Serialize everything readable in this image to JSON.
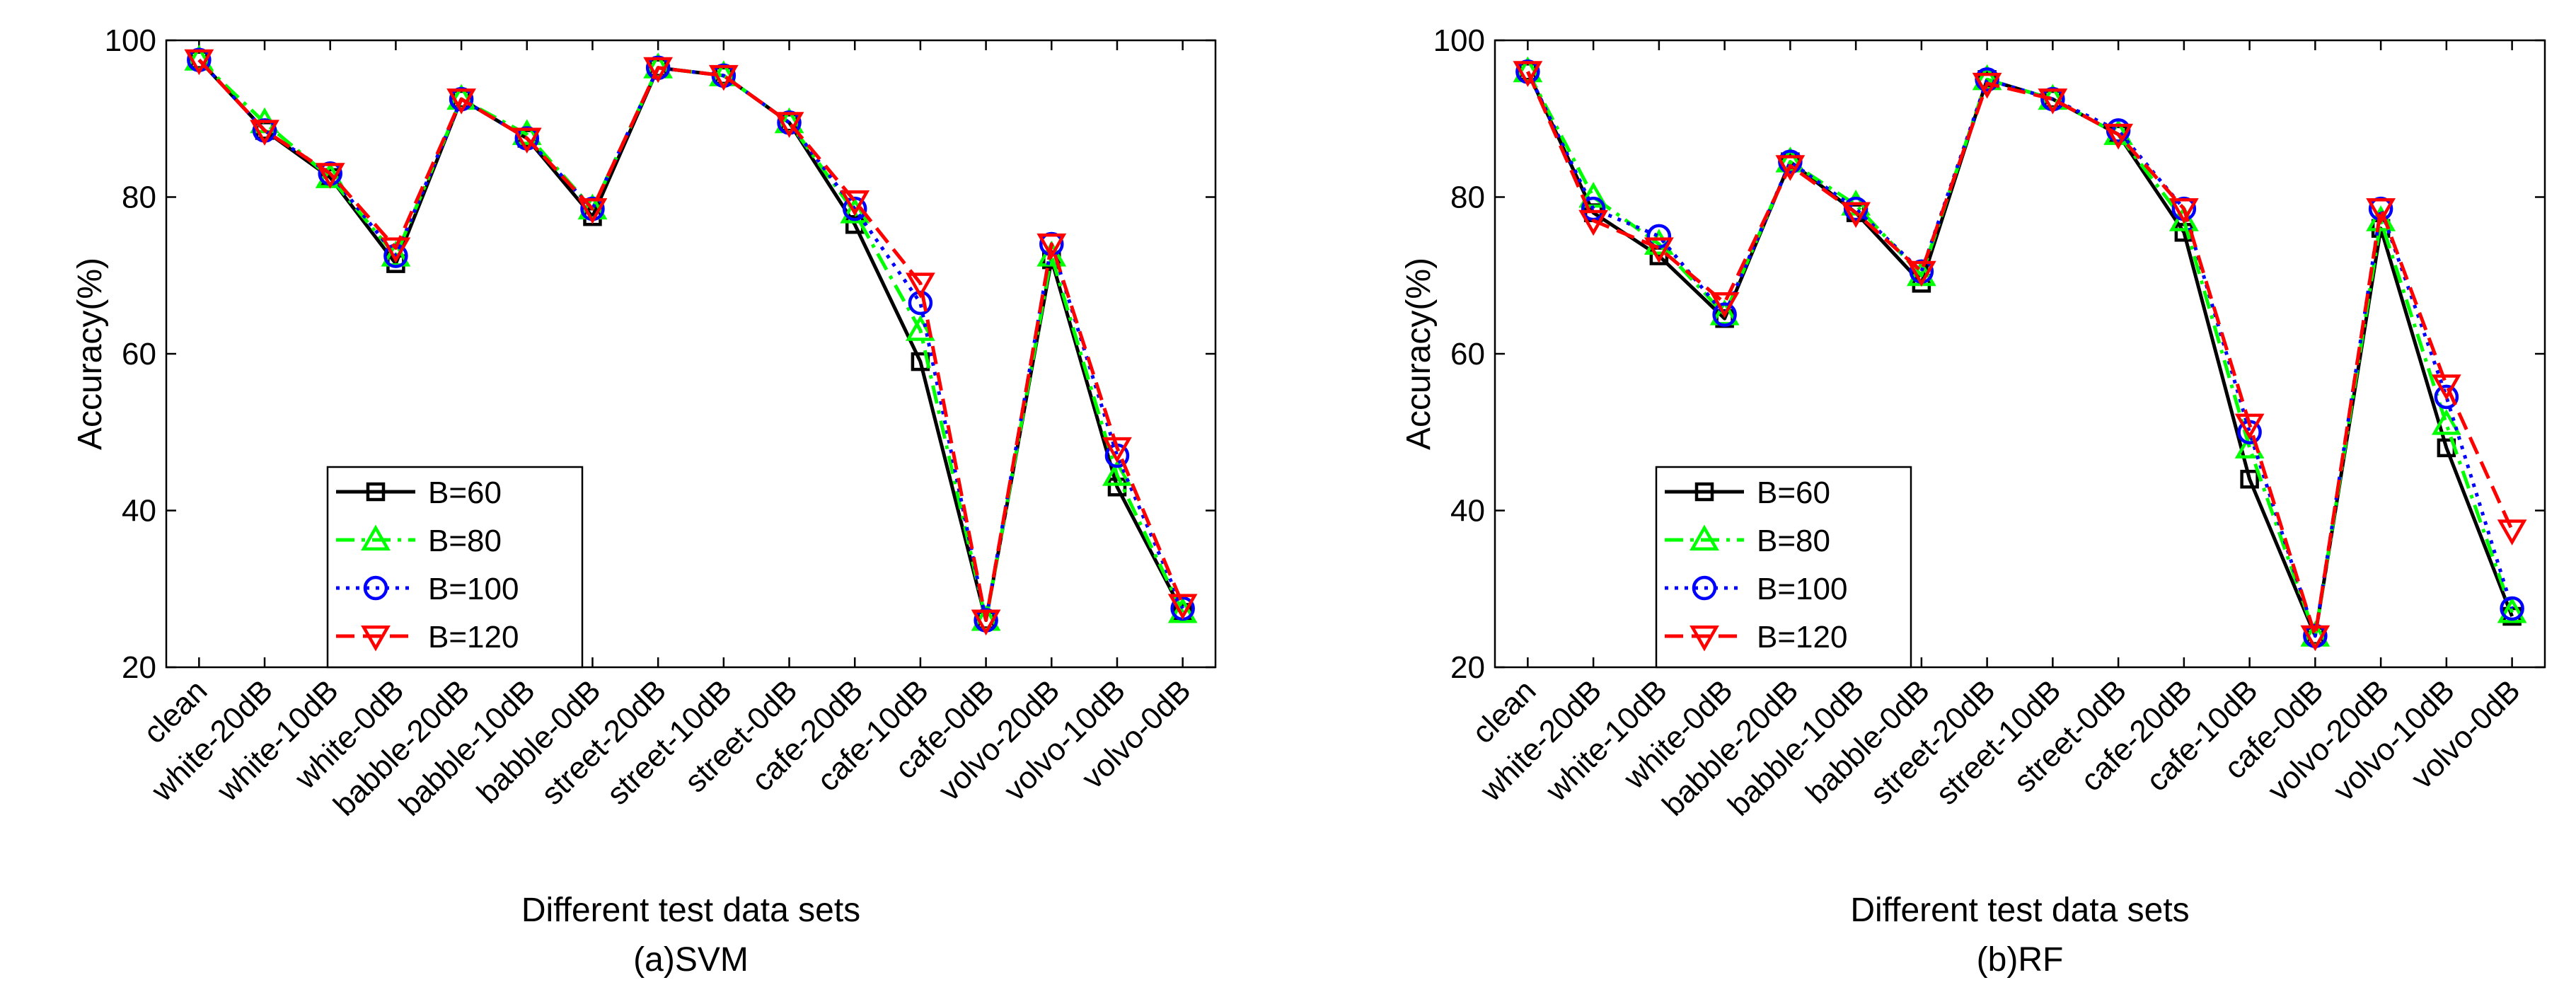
{
  "chart_data": [
    {
      "type": "line",
      "title": "",
      "caption": "(a)SVM",
      "xlabel": "Different test data sets",
      "ylabel": "Accuracy(%)",
      "ylim": [
        20,
        100
      ],
      "yticks": [
        20,
        40,
        60,
        80,
        100
      ],
      "grid": false,
      "legend_position": "bottom-left",
      "categories": [
        "clean",
        "white-20dB",
        "white-10dB",
        "white-0dB",
        "babble-20dB",
        "babble-10dB",
        "babble-0dB",
        "street-20dB",
        "street-10dB",
        "street-0dB",
        "cafe-20dB",
        "cafe-10dB",
        "cafe-0dB",
        "volvo-20dB",
        "volvo-10dB",
        "volvo-0dB"
      ],
      "series": [
        {
          "name": "B=60",
          "color": "#000000",
          "line": "solid",
          "marker": "square",
          "values": [
            97.5,
            88.5,
            82.5,
            71.5,
            92.5,
            87.5,
            77.5,
            96.5,
            95.5,
            89.5,
            76.5,
            59.0,
            26.0,
            72.0,
            43.0,
            27.0
          ]
        },
        {
          "name": "B=80",
          "color": "#00ff00",
          "line": "dashdot",
          "marker": "triangle-up",
          "values": [
            97.5,
            89.5,
            82.5,
            72.5,
            92.5,
            88.0,
            78.5,
            96.5,
            95.5,
            89.5,
            78.0,
            63.0,
            26.0,
            72.5,
            44.5,
            27.0
          ]
        },
        {
          "name": "B=100",
          "color": "#0000ff",
          "line": "dotted",
          "marker": "circle",
          "values": [
            97.5,
            88.5,
            83.0,
            72.5,
            92.5,
            87.5,
            78.5,
            96.5,
            95.5,
            89.5,
            78.5,
            66.5,
            26.0,
            74.0,
            47.0,
            27.5
          ]
        },
        {
          "name": "B=120",
          "color": "#ff0000",
          "line": "dashed",
          "marker": "triangle-down",
          "values": [
            97.5,
            88.5,
            83.0,
            73.5,
            92.5,
            87.5,
            78.5,
            96.5,
            95.5,
            89.5,
            79.5,
            69.0,
            26.0,
            74.0,
            48.0,
            28.0
          ]
        }
      ]
    },
    {
      "type": "line",
      "title": "",
      "caption": "(b)RF",
      "xlabel": "Different test data sets",
      "ylabel": "Accuracy(%)",
      "ylim": [
        20,
        100
      ],
      "yticks": [
        20,
        40,
        60,
        80,
        100
      ],
      "grid": false,
      "legend_position": "bottom-left",
      "categories": [
        "clean",
        "white-20dB",
        "white-10dB",
        "white-0dB",
        "babble-20dB",
        "babble-10dB",
        "babble-0dB",
        "street-20dB",
        "street-10dB",
        "street-0dB",
        "cafe-20dB",
        "cafe-10dB",
        "cafe-0dB",
        "volvo-20dB",
        "volvo-10dB",
        "volvo-0dB"
      ],
      "series": [
        {
          "name": "B=60",
          "color": "#000000",
          "line": "solid",
          "marker": "square",
          "values": [
            96.0,
            78.0,
            72.5,
            64.5,
            84.5,
            78.0,
            69.0,
            95.0,
            92.5,
            88.0,
            75.5,
            44.0,
            24.0,
            76.0,
            48.0,
            26.5
          ]
        },
        {
          "name": "B=80",
          "color": "#00ff00",
          "line": "dashdot",
          "marker": "triangle-up",
          "values": [
            96.0,
            80.0,
            74.0,
            65.0,
            84.5,
            79.0,
            70.0,
            95.0,
            92.5,
            88.0,
            77.0,
            48.0,
            24.0,
            77.0,
            51.0,
            27.0
          ]
        },
        {
          "name": "B=100",
          "color": "#0000ff",
          "line": "dotted",
          "marker": "circle",
          "values": [
            96.0,
            78.5,
            75.0,
            65.0,
            84.5,
            78.5,
            70.5,
            95.0,
            92.5,
            88.5,
            78.5,
            50.0,
            24.0,
            78.5,
            54.5,
            27.5
          ]
        },
        {
          "name": "B=120",
          "color": "#ff0000",
          "line": "dashed",
          "marker": "triangle-down",
          "values": [
            96.0,
            77.0,
            73.5,
            66.5,
            84.0,
            78.0,
            70.5,
            94.5,
            92.5,
            88.0,
            78.5,
            51.0,
            24.0,
            78.5,
            56.0,
            37.5
          ]
        }
      ]
    }
  ]
}
